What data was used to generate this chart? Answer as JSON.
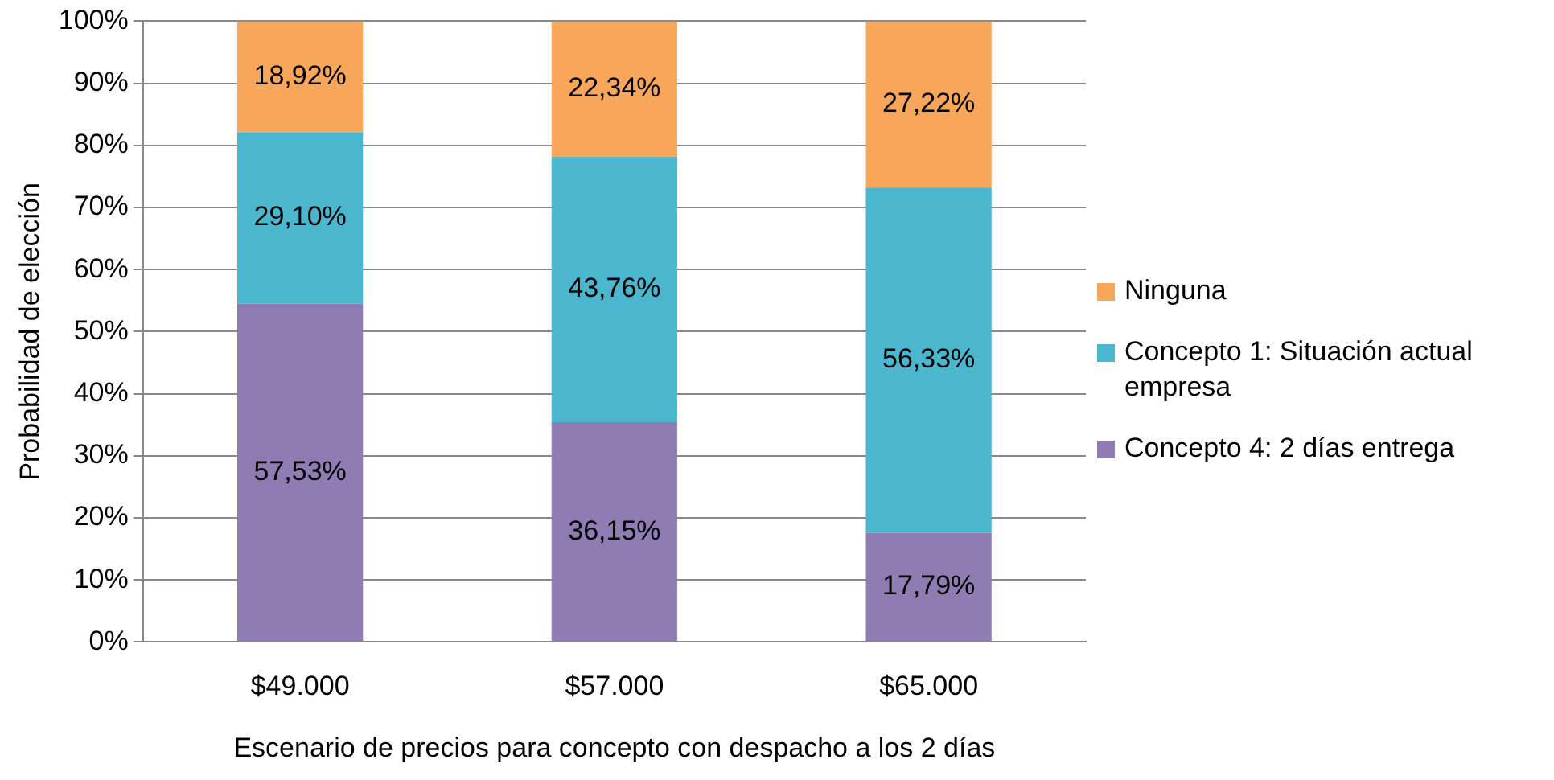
{
  "chart_data": {
    "type": "bar",
    "stacked": true,
    "xlabel": "Escenario de precios para concepto con despacho a los 2 días",
    "ylabel": "Probabilidad de elección",
    "categories": [
      "$49.000",
      "$57.000",
      "$65.000"
    ],
    "series": [
      {
        "name": "Concepto 4: 2 días entrega",
        "color": "#8e7cb3",
        "values": [
          54.5,
          35.4,
          17.6
        ]
      },
      {
        "name": "Concepto 1: Situación actual empresa",
        "color": "#4bb7cf",
        "values": [
          27.6,
          42.8,
          55.6
        ]
      },
      {
        "name": "Ninguna",
        "color": "#f8a75a",
        "values": [
          17.9,
          21.8,
          26.8
        ]
      }
    ],
    "annotations": [
      "57,53%",
      "36,15%",
      "17,79%",
      "29,10%",
      "43,76%",
      "56,33%",
      "18,92%",
      "22,34%",
      "27,22%"
    ],
    "ylim": [
      0,
      100
    ],
    "yticks": [
      {
        "value": 0,
        "label": "0%"
      },
      {
        "value": 10,
        "label": "10%"
      },
      {
        "value": 20,
        "label": "20%"
      },
      {
        "value": 30,
        "label": "30%"
      },
      {
        "value": 40,
        "label": "40%"
      },
      {
        "value": 50,
        "label": "50%"
      },
      {
        "value": 60,
        "label": "60%"
      },
      {
        "value": 70,
        "label": "70%"
      },
      {
        "value": 80,
        "label": "80%"
      },
      {
        "value": 90,
        "label": "90%"
      },
      {
        "value": 100,
        "label": "100%"
      }
    ],
    "grid": "y",
    "legend": "right"
  }
}
